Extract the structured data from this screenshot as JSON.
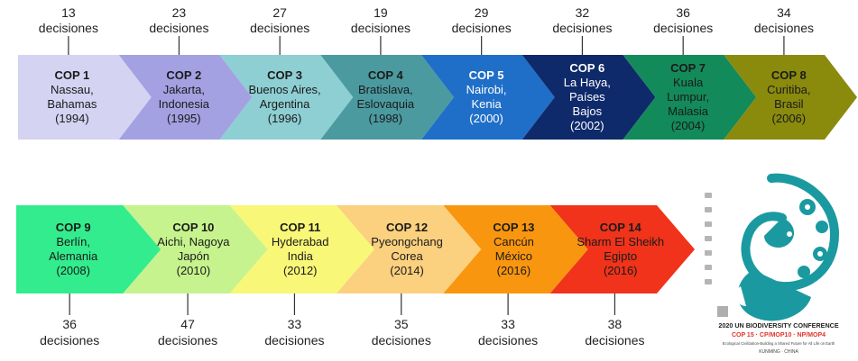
{
  "cops": [
    {
      "name": "COP 1",
      "lines": [
        "Nassau,",
        "Bahamas",
        "(1994)"
      ],
      "count": "13",
      "unit": "decisiones",
      "fill": "#d4d3f2",
      "text": "#1a1a1a"
    },
    {
      "name": "COP 2",
      "lines": [
        "Jakarta,",
        "Indonesia",
        "(1995)"
      ],
      "count": "23",
      "unit": "decisiones",
      "fill": "#a3a1e2",
      "text": "#1a1a1a"
    },
    {
      "name": "COP 3",
      "lines": [
        "Buenos Aires,",
        "Argentina",
        "(1996)"
      ],
      "count": "27",
      "unit": "decisiones",
      "fill": "#8ecfd3",
      "text": "#1a1a1a"
    },
    {
      "name": "COP 4",
      "lines": [
        "Bratislava,",
        "Eslovaquia",
        "(1998)"
      ],
      "count": "19",
      "unit": "decisiones",
      "fill": "#4b9aa0",
      "text": "#1a1a1a"
    },
    {
      "name": "COP 5",
      "lines": [
        "Nairobi,",
        "Kenia",
        "(2000)"
      ],
      "count": "29",
      "unit": "decisiones",
      "fill": "#1f6fc8",
      "text": "#ffffff"
    },
    {
      "name": "COP 6",
      "lines": [
        "La Haya,",
        "Países",
        "Bajos",
        "(2002)"
      ],
      "count": "32",
      "unit": "decisiones",
      "fill": "#0f2a6b",
      "text": "#ffffff"
    },
    {
      "name": "COP 7",
      "lines": [
        "Kuala",
        "Lumpur,",
        "Malasia",
        "(2004)"
      ],
      "count": "36",
      "unit": "decisiones",
      "fill": "#138a5a",
      "text": "#1a1a1a"
    },
    {
      "name": "COP 8",
      "lines": [
        "Curitiba,",
        "Brasil",
        "(2006)"
      ],
      "count": "34",
      "unit": "decisiones",
      "fill": "#8a8a0d",
      "text": "#1a1a1a"
    },
    {
      "name": "COP 9",
      "lines": [
        "Berlín,",
        "Alemania",
        "(2008)"
      ],
      "count": "36",
      "unit": "decisiones",
      "fill": "#33ec8d",
      "text": "#1a1a1a"
    },
    {
      "name": "COP 10",
      "lines": [
        "Aichi, Nagoya",
        "Japón",
        "(2010)"
      ],
      "count": "47",
      "unit": "decisiones",
      "fill": "#c6f38d",
      "text": "#1a1a1a"
    },
    {
      "name": "COP 11",
      "lines": [
        "Hyderabad",
        "India",
        "(2012)"
      ],
      "count": "33",
      "unit": "decisiones",
      "fill": "#f9f777",
      "text": "#1a1a1a"
    },
    {
      "name": "COP 12",
      "lines": [
        "Pyeongchang",
        "Corea",
        "(2014)"
      ],
      "count": "35",
      "unit": "decisiones",
      "fill": "#fbd07e",
      "text": "#1a1a1a"
    },
    {
      "name": "COP 13",
      "lines": [
        "Cancún",
        "México",
        "(2016)"
      ],
      "count": "33",
      "unit": "decisiones",
      "fill": "#f9960f",
      "text": "#1a1a1a"
    },
    {
      "name": "COP 14",
      "lines": [
        "Sharm El Sheikh",
        "Egipto",
        "(2016)"
      ],
      "count": "38",
      "unit": "decisiones",
      "fill": "#f0331a",
      "text": "#1a1a1a"
    }
  ],
  "logo": {
    "title": "2020 UN BIODIVERSITY CONFERENCE",
    "subtitle": "COP 15 · CP/MOP10 · NP/MOP4",
    "tagline": "Ecological Civilization-Building a Shared Future for All Life on Earth",
    "location": "KUNMING · CHINA",
    "color": "#1a9aa0",
    "accent": "#e0332b"
  }
}
